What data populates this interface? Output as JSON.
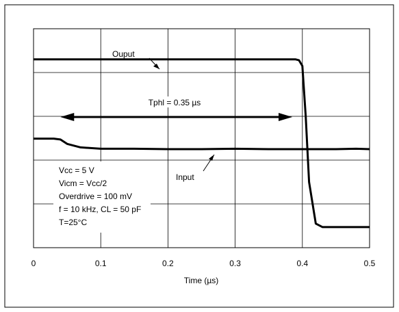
{
  "chart_data": {
    "type": "line",
    "xlabel": "Time (µs)",
    "ylabel": "",
    "xlim": [
      0,
      0.5
    ],
    "ylim": [
      0,
      5
    ],
    "xticks": [
      "0",
      "0.1",
      "0.2",
      "0.3",
      "0.4",
      "0.5"
    ],
    "grid": true,
    "legend": "none",
    "series": [
      {
        "name": "Ouput",
        "x": [
          0,
          0.1,
          0.2,
          0.3,
          0.39,
          0.395,
          0.4,
          0.405,
          0.41,
          0.42,
          0.43,
          0.45,
          0.5
        ],
        "y": [
          4.3,
          4.3,
          4.3,
          4.3,
          4.3,
          4.28,
          4.15,
          3.0,
          1.5,
          0.55,
          0.47,
          0.47,
          0.47
        ]
      },
      {
        "name": "Input",
        "x": [
          0,
          0.03,
          0.04,
          0.05,
          0.07,
          0.1,
          0.15,
          0.2,
          0.25,
          0.3,
          0.35,
          0.4,
          0.45,
          0.48,
          0.5
        ],
        "y": [
          2.49,
          2.49,
          2.47,
          2.37,
          2.29,
          2.26,
          2.26,
          2.25,
          2.25,
          2.26,
          2.25,
          2.25,
          2.25,
          2.26,
          2.25
        ]
      }
    ],
    "annotations": {
      "output_label": "Ouput",
      "input_label": "Input",
      "tphl_label": "Tphl = 0.35 µs",
      "tphl_start": 0.04,
      "tphl_end": 0.385,
      "conditions": [
        "Vcc = 5 V",
        "Vicm = Vcc/2",
        "Overdrive = 100 mV",
        "f = 10 kHz, CL = 50 pF",
        "T=25°C"
      ]
    },
    "colors": {
      "line": "#000000",
      "grid": "#000000",
      "frame": "#000000"
    }
  }
}
